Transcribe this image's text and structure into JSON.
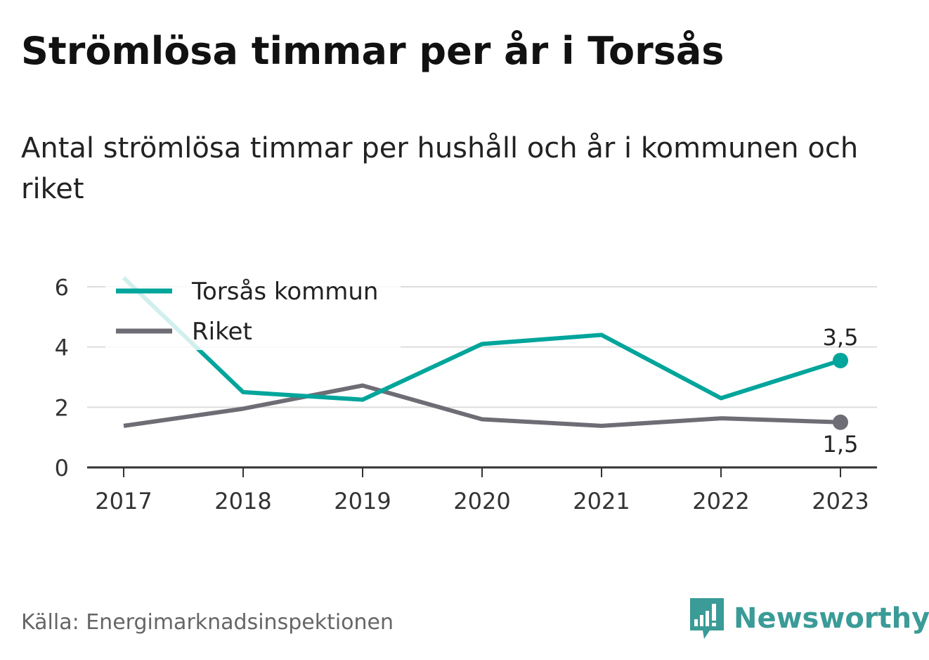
{
  "header": {
    "title": "Strömlösa timmar per år i Torsås",
    "subtitle": "Antal strömlösa timmar per hushåll och år i kommunen och riket"
  },
  "chart_data": {
    "type": "line",
    "title": "Strömlösa timmar per år i Torsås",
    "subtitle": "Antal strömlösa timmar per hushåll och år i kommunen och riket",
    "xlabel": "",
    "ylabel": "",
    "categories": [
      "2017",
      "2018",
      "2019",
      "2020",
      "2021",
      "2022",
      "2023"
    ],
    "ylim": [
      0,
      6
    ],
    "yticks": [
      "0",
      "2",
      "4",
      "6"
    ],
    "grid": true,
    "legend_position": "top-left",
    "series": [
      {
        "name": "Torsås kommun",
        "color": "#00a59b",
        "values": [
          6.3,
          2.5,
          2.25,
          4.1,
          4.4,
          2.3,
          3.55
        ],
        "end_label": "3,5"
      },
      {
        "name": "Riket",
        "color": "#6e6d75",
        "values": [
          1.38,
          1.95,
          2.72,
          1.6,
          1.38,
          1.63,
          1.5
        ],
        "end_label": "1,5"
      }
    ]
  },
  "footer": {
    "source": "Källa: Energimarknadsinspektionen",
    "brand": "Newsworthy",
    "brand_icon": "bar-chart-bubble-icon",
    "brand_color": "#3a9b97"
  }
}
